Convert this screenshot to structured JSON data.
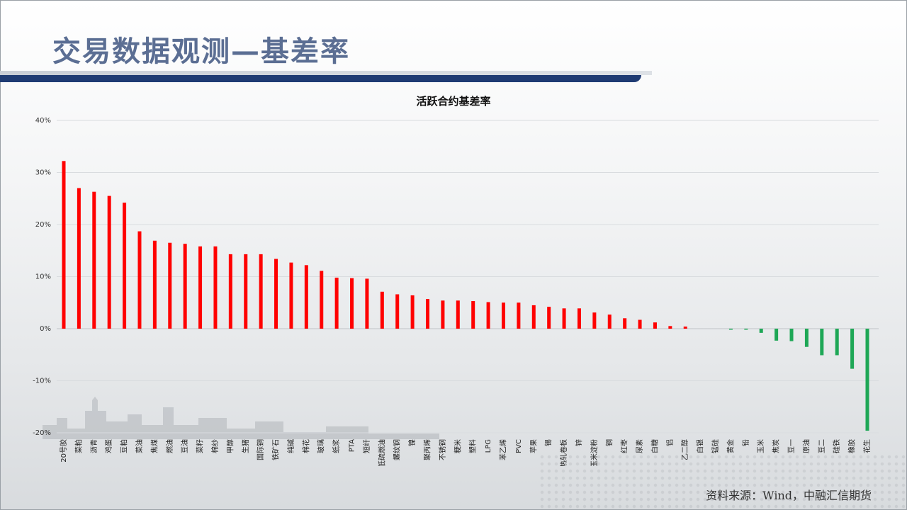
{
  "slide": {
    "title": "交易数据观测—基差率",
    "source": "资料来源：Wind，中融汇信期货"
  },
  "colors": {
    "positive": "#ff0000",
    "negative": "#1ea756",
    "title": "#5b6e93",
    "title_bar": "#1f3b73"
  },
  "chart_data": {
    "type": "bar",
    "title": "活跃合约基差率",
    "xlabel": "",
    "ylabel": "",
    "ylim": [
      -20,
      40
    ],
    "yticks": [
      40,
      30,
      20,
      10,
      0,
      -10,
      -20
    ],
    "ytick_labels": [
      "40%",
      "30%",
      "20%",
      "10%",
      "0%",
      "-10%",
      "-20%"
    ],
    "grid": true,
    "categories": [
      "20号胶",
      "菜粕",
      "沥青",
      "鸡蛋",
      "豆粕",
      "菜油",
      "焦煤",
      "燃油",
      "豆油",
      "菜籽",
      "棉纱",
      "甲醇",
      "生猪",
      "国际铜",
      "铁矿石",
      "纯碱",
      "棉花",
      "玻璃",
      "纸浆",
      "PTA",
      "短纤",
      "低硫燃油",
      "螺纹钢",
      "镍",
      "聚丙烯",
      "不锈钢",
      "粳米",
      "塑料",
      "LPG",
      "苯乙烯",
      "PVC",
      "苹果",
      "锡",
      "热轧卷板",
      "锌",
      "玉米淀粉",
      "铜",
      "红枣",
      "尿素",
      "白糖",
      "铝",
      "乙二醇",
      "白银",
      "锰硅",
      "黄金",
      "铅",
      "玉米",
      "焦炭",
      "豆一",
      "原油",
      "豆二",
      "硅铁",
      "橡胶",
      "花生"
    ],
    "values": [
      32.2,
      27.0,
      26.3,
      25.5,
      24.2,
      18.7,
      16.9,
      16.5,
      16.3,
      15.8,
      15.8,
      14.3,
      14.3,
      14.3,
      13.4,
      12.7,
      12.2,
      11.1,
      9.8,
      9.7,
      9.6,
      7.1,
      6.6,
      6.4,
      5.7,
      5.4,
      5.4,
      5.3,
      5.1,
      5.0,
      5.0,
      4.5,
      4.2,
      3.9,
      3.9,
      3.1,
      2.7,
      2.0,
      1.7,
      1.2,
      0.5,
      0.4,
      0.0,
      0.0,
      -0.2,
      -0.2,
      -0.8,
      -2.3,
      -2.4,
      -3.5,
      -5.1,
      -5.1,
      -7.7,
      -19.6
    ]
  }
}
